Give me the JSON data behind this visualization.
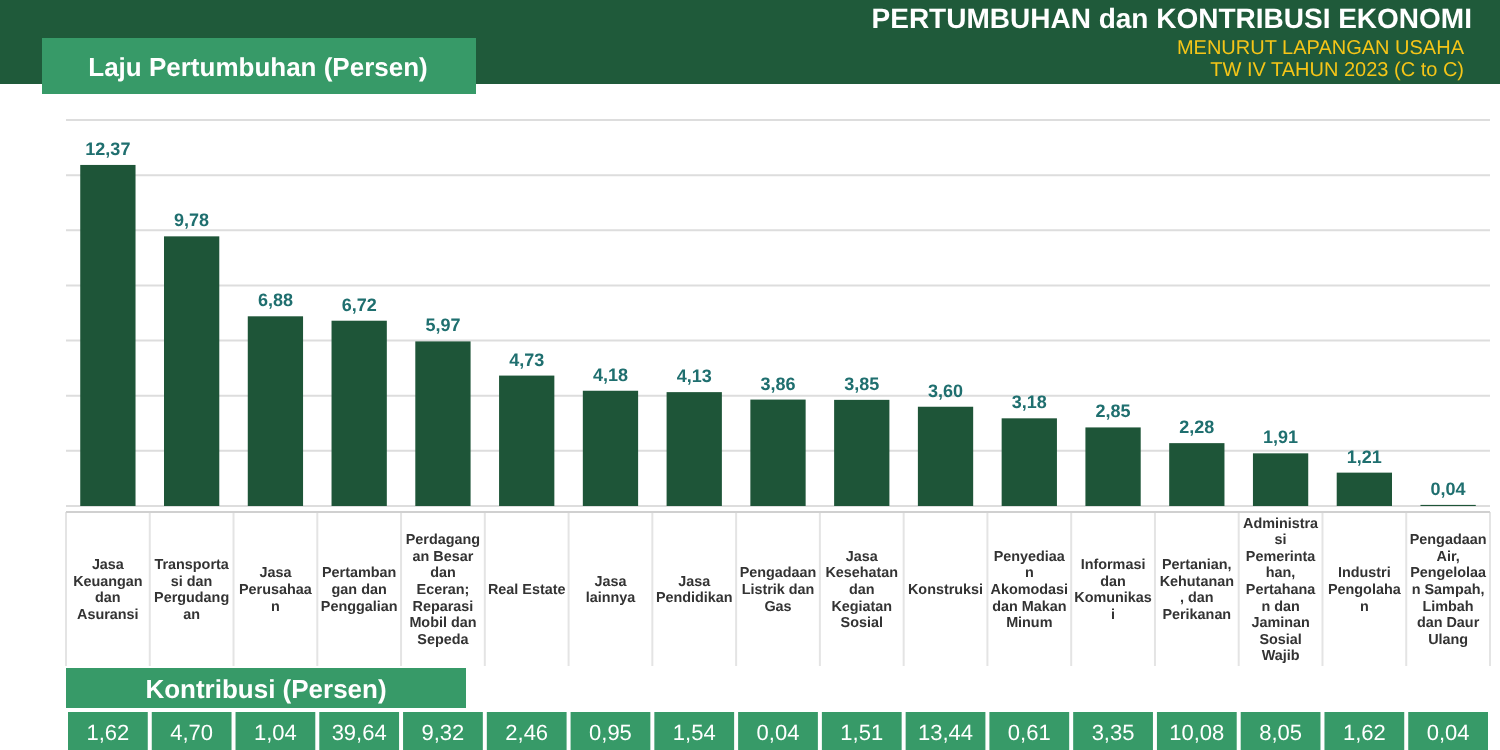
{
  "chart_data": {
    "type": "bar",
    "title": "PERTUMBUHAN dan KONTRIBUSI EKONOMI",
    "subtitle": "MENURUT LAPANGAN USAHA TW IV TAHUN 2023 (C to C)",
    "ylabel": "Laju Pertumbuhan (Persen)",
    "categories": [
      "Jasa Keuangan dan Asuransi",
      "Transportasi dan Pergudangan",
      "Jasa Perusahaan",
      "Pertambangan dan Penggalian",
      "Perdagangan Besar dan Eceran; Reparasi Mobil dan Sepeda",
      "Real Estate",
      "Jasa lainnya",
      "Jasa Pendidikan",
      "Pengadaan Listrik dan Gas",
      "Jasa Kesehatan dan Kegiatan Sosial",
      "Konstruksi",
      "Penyediaan Akomodasi dan Makan Minum",
      "Informasi dan Komunikasi",
      "Pertanian, Kehutanan, dan Perikanan",
      "Administrasi Pemerintahan, Pertahanan dan Jaminan Sosial Wajib",
      "Industri Pengolahan",
      "Pengadaan Air, Pengelolaan Sampah, Limbah dan Daur Ulang"
    ],
    "values": [
      12.37,
      9.78,
      6.88,
      6.72,
      5.97,
      4.73,
      4.18,
      4.13,
      3.86,
      3.85,
      3.6,
      3.18,
      2.85,
      2.28,
      1.91,
      1.21,
      0.04
    ],
    "value_labels": [
      "12,37",
      "9,78",
      "6,88",
      "6,72",
      "5,97",
      "4,73",
      "4,18",
      "4,13",
      "3,86",
      "3,85",
      "3,60",
      "3,18",
      "2,85",
      "2,28",
      "1,91",
      "1,21",
      "0,04"
    ],
    "color": "#1e5538",
    "ylim": [
      0,
      14
    ],
    "yticks": [
      {
        "value": 0,
        "label": null
      },
      {
        "value": 2,
        "label": null
      },
      {
        "value": 4,
        "label": null
      },
      {
        "value": 6,
        "label": null
      },
      {
        "value": 8,
        "label": null
      },
      {
        "value": 10,
        "label": null
      },
      {
        "value": 12,
        "label": null
      },
      {
        "value": 14,
        "label": null
      }
    ],
    "tick_labels": "x",
    "grid": "y",
    "annotations": [
      "Kontribusi (Persen)",
      "1,62",
      "4,70",
      "1,04",
      "39,64",
      "9,32",
      "2,46",
      "0,95",
      "1,54",
      "0,04",
      "1,51",
      "13,44",
      "0,61",
      "3,35",
      "10,08",
      "8,05",
      "1,62",
      "0,04"
    ]
  }
}
